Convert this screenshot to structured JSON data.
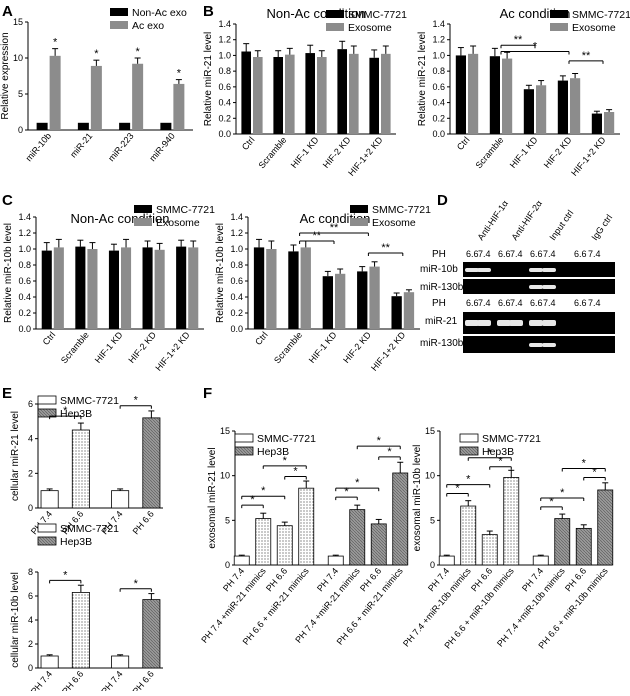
{
  "colors": {
    "black": "#000000",
    "gray": "#8c8c8c",
    "white": "#ffffff",
    "hatch": "#7a7a7a"
  },
  "panel_labels": {
    "a": "A",
    "b": "B",
    "c": "C",
    "d": "D",
    "e": "E",
    "f": "F"
  },
  "gel": {
    "headers": [
      "Anti-HIF-1α",
      "Anti-HIF-2α",
      "Input ctrl",
      "IgG ctrl"
    ],
    "ph_label": "PH",
    "ph_values": [
      "6.6",
      "7.4",
      "6.6",
      "7.4",
      "6.6",
      "7.4",
      "6.6",
      "7.4"
    ],
    "rows_top": [
      "miR-10b",
      "miR-130b"
    ],
    "rows_bottom": [
      "miR-21",
      "miR-130b"
    ]
  },
  "chart_data": [
    {
      "id": "A",
      "type": "bar",
      "title": "",
      "ylabel": "Relative expression",
      "ylim": [
        0,
        15
      ],
      "yticks": [
        0,
        5,
        10,
        15
      ],
      "categories": [
        "miR-10b",
        "miR-21",
        "miR-223",
        "miR-940"
      ],
      "series": [
        {
          "name": "Non-Ac exo",
          "color": "#000000",
          "values": [
            1,
            1,
            1,
            1
          ],
          "err": [
            0,
            0,
            0,
            0
          ]
        },
        {
          "name": "Ac exo",
          "color": "#8c8c8c",
          "values": [
            10.3,
            8.9,
            9.2,
            6.4
          ],
          "err": [
            1.0,
            0.8,
            0.8,
            0.6
          ]
        }
      ],
      "stars": [
        "*",
        "*",
        "*",
        "*"
      ]
    },
    {
      "id": "B1",
      "type": "bar",
      "title": "Non-Ac condition",
      "ylabel": "Relative miR-21 level",
      "ylim": [
        0,
        1.4
      ],
      "yticks": [
        0,
        0.2,
        0.4,
        0.6,
        0.8,
        1.0,
        1.2,
        1.4
      ],
      "categories": [
        "Ctrl",
        "Scramble",
        "HIF-1 KD",
        "HIF-2 KD",
        "HIF-1+2 KD"
      ],
      "series": [
        {
          "name": "SMMC-7721",
          "color": "#000000",
          "values": [
            1.05,
            0.98,
            1.03,
            1.08,
            0.97
          ],
          "err": [
            0.1,
            0.08,
            0.1,
            0.1,
            0.1
          ]
        },
        {
          "name": "Exosome",
          "color": "#8c8c8c",
          "values": [
            0.98,
            1.01,
            0.98,
            1.02,
            1.02
          ],
          "err": [
            0.08,
            0.08,
            0.08,
            0.1,
            0.1
          ]
        }
      ]
    },
    {
      "id": "B2",
      "type": "bar",
      "title": "Ac condition",
      "ylabel": "Relative miR-21 level",
      "ylim": [
        0,
        1.4
      ],
      "yticks": [
        0,
        0.2,
        0.4,
        0.6,
        0.8,
        1.0,
        1.2,
        1.4
      ],
      "categories": [
        "Ctrl",
        "Scramble",
        "HIF-1 KD",
        "HIF-2 KD",
        "HIF-1+2 KD"
      ],
      "series": [
        {
          "name": "SMMC-7721",
          "color": "#000000",
          "values": [
            1.0,
            0.99,
            0.57,
            0.68,
            0.26
          ],
          "err": [
            0.1,
            0.1,
            0.05,
            0.06,
            0.03
          ]
        },
        {
          "name": "Exosome",
          "color": "#8c8c8c",
          "values": [
            1.02,
            0.96,
            0.62,
            0.71,
            0.28
          ],
          "err": [
            0.1,
            0.08,
            0.06,
            0.06,
            0.03
          ]
        }
      ],
      "brackets": [
        {
          "from": 1,
          "to": 2,
          "label": "**",
          "y": 1.13
        },
        {
          "from": 1,
          "to": 3,
          "label": "*",
          "y": 1.05
        },
        {
          "from": 3,
          "to": 4,
          "label": "**",
          "y": 0.93
        },
        {
          "from": 1,
          "to": 2,
          "label": "**",
          "y": 1.02,
          "skip": true
        }
      ]
    },
    {
      "id": "C1",
      "type": "bar",
      "title": "Non-Ac condition",
      "ylabel": "Relative miR-10b level",
      "ylim": [
        0,
        1.4
      ],
      "yticks": [
        0,
        0.2,
        0.4,
        0.6,
        0.8,
        1.0,
        1.2,
        1.4
      ],
      "categories": [
        "Ctrl",
        "Scramble",
        "HIF-1 KD",
        "HIF-2 KD",
        "HIF-1+2 KD"
      ],
      "series": [
        {
          "name": "SMMC-7721",
          "color": "#000000",
          "values": [
            0.98,
            1.03,
            0.98,
            1.02,
            1.03
          ],
          "err": [
            0.1,
            0.08,
            0.08,
            0.08,
            0.08
          ]
        },
        {
          "name": "Exosome",
          "color": "#8c8c8c",
          "values": [
            1.02,
            1.0,
            1.02,
            0.99,
            1.02
          ],
          "err": [
            0.1,
            0.08,
            0.1,
            0.08,
            0.08
          ]
        }
      ]
    },
    {
      "id": "C2",
      "type": "bar",
      "title": "Ac condition",
      "ylabel": "Relative miR-10b level",
      "ylim": [
        0,
        1.4
      ],
      "yticks": [
        0,
        0.2,
        0.4,
        0.6,
        0.8,
        1.0,
        1.2,
        1.4
      ],
      "categories": [
        "Ctrl",
        "Scramble",
        "HIF-1 KD",
        "HIF-2 KD",
        "HIF-1+2 KD"
      ],
      "series": [
        {
          "name": "SMMC-7721",
          "color": "#000000",
          "values": [
            1.02,
            0.97,
            0.66,
            0.72,
            0.41
          ],
          "err": [
            0.1,
            0.08,
            0.06,
            0.06,
            0.04
          ]
        },
        {
          "name": "Exosome",
          "color": "#8c8c8c",
          "values": [
            1.0,
            1.02,
            0.69,
            0.78,
            0.46
          ],
          "err": [
            0.1,
            0.08,
            0.06,
            0.06,
            0.03
          ]
        }
      ],
      "brackets": [
        {
          "from": 1,
          "to": 3,
          "label": "**",
          "y": 1.2
        },
        {
          "from": 1,
          "to": 2,
          "label": "**",
          "y": 1.1
        },
        {
          "from": 1,
          "to": 4,
          "label": "*",
          "y": 1.06,
          "skip": true
        },
        {
          "from": 3,
          "to": 4,
          "label": "**",
          "y": 0.95
        }
      ]
    },
    {
      "id": "E1",
      "type": "bar",
      "title": "",
      "ylabel": "cellular miR-21 level",
      "ylim": [
        0,
        6
      ],
      "yticks": [
        0,
        2,
        4,
        6
      ],
      "categories": [
        "PH 7.4",
        "PH 6.6",
        "PH 7.4",
        "PH 6.6"
      ],
      "bars": [
        {
          "value": 1.0,
          "err": 0.1,
          "fill": "white"
        },
        {
          "value": 4.5,
          "err": 0.4,
          "fill": "dots"
        },
        {
          "value": 1.0,
          "err": 0.1,
          "fill": "white"
        },
        {
          "value": 5.2,
          "err": 0.4,
          "fill": "hatch"
        }
      ],
      "legend": [
        "SMMC-7721",
        "Hep3B"
      ],
      "brackets": [
        {
          "from": 0,
          "to": 1,
          "label": "*",
          "y": 5.3
        },
        {
          "from": 2,
          "to": 3,
          "label": "*",
          "y": 5.9
        }
      ]
    },
    {
      "id": "E2",
      "type": "bar",
      "title": "",
      "ylabel": "cellular miR-10b level",
      "ylim": [
        0,
        8
      ],
      "yticks": [
        0,
        2,
        4,
        6,
        8
      ],
      "categories": [
        "PH 7.4",
        "PH 6.6",
        "PH 7.4",
        "PH 6.6"
      ],
      "bars": [
        {
          "value": 1.0,
          "err": 0.1,
          "fill": "white"
        },
        {
          "value": 6.3,
          "err": 0.6,
          "fill": "dots"
        },
        {
          "value": 1.0,
          "err": 0.1,
          "fill": "white"
        },
        {
          "value": 5.7,
          "err": 0.5,
          "fill": "hatch"
        }
      ],
      "legend": [
        "SMMC-7721",
        "Hep3B"
      ],
      "brackets": [
        {
          "from": 0,
          "to": 1,
          "label": "*",
          "y": 7.3
        },
        {
          "from": 2,
          "to": 3,
          "label": "*",
          "y": 6.6
        }
      ]
    },
    {
      "id": "F1",
      "type": "bar",
      "title": "",
      "ylabel": "exosomal miR-21 level",
      "ylim": [
        0,
        15
      ],
      "yticks": [
        0,
        5,
        10,
        15
      ],
      "categories": [
        "PH 7.4",
        "PH 7.4 +miR-21 mimics",
        "PH 6.6",
        "PH 6.6 + miR-21 mimics",
        "PH 7.4",
        "PH 7.4 +miR-21 mimics",
        "PH 6.6",
        "PH 6.6 + miR-21 mimics"
      ],
      "bars": [
        {
          "value": 1.0,
          "err": 0.1,
          "fill": "white"
        },
        {
          "value": 5.2,
          "err": 0.6,
          "fill": "dots"
        },
        {
          "value": 4.4,
          "err": 0.4,
          "fill": "dots"
        },
        {
          "value": 8.6,
          "err": 0.8,
          "fill": "dots"
        },
        {
          "value": 1.0,
          "err": 0.1,
          "fill": "white"
        },
        {
          "value": 6.2,
          "err": 0.5,
          "fill": "hatch"
        },
        {
          "value": 4.6,
          "err": 0.5,
          "fill": "hatch"
        },
        {
          "value": 10.3,
          "err": 1.2,
          "fill": "hatch"
        }
      ],
      "legend": [
        "SMMC-7721",
        "Hep3B"
      ],
      "brackets": [
        {
          "from": 0,
          "to": 1,
          "label": "*",
          "y": 6.7
        },
        {
          "from": 0,
          "to": 2,
          "label": "*",
          "y": 7.7
        },
        {
          "from": 2,
          "to": 3,
          "label": "*",
          "y": 9.9
        },
        {
          "from": 1,
          "to": 3,
          "label": "*",
          "y": 11.1
        },
        {
          "from": 4,
          "to": 5,
          "label": "*",
          "y": 7.6
        },
        {
          "from": 4,
          "to": 6,
          "label": "*",
          "y": 8.6
        },
        {
          "from": 6,
          "to": 7,
          "label": "*",
          "y": 12.1
        },
        {
          "from": 5,
          "to": 7,
          "label": "*",
          "y": 13.3
        }
      ]
    },
    {
      "id": "F2",
      "type": "bar",
      "title": "",
      "ylabel": "exosomal miR-10b level",
      "ylim": [
        0,
        15
      ],
      "yticks": [
        0,
        5,
        10,
        15
      ],
      "categories": [
        "PH 7.4",
        "PH 7.4 +miR-10b mimics",
        "PH 6.6",
        "PH 6.6 + miR-10b mimics",
        "PH 7.4",
        "PH 7.4 +miR-10b mimics",
        "PH 6.6",
        "PH 6.6 + miR-10b mimics"
      ],
      "bars": [
        {
          "value": 1.0,
          "err": 0.1,
          "fill": "white"
        },
        {
          "value": 6.6,
          "err": 0.6,
          "fill": "dots"
        },
        {
          "value": 3.4,
          "err": 0.4,
          "fill": "dots"
        },
        {
          "value": 9.8,
          "err": 0.8,
          "fill": "dots"
        },
        {
          "value": 1.0,
          "err": 0.1,
          "fill": "white"
        },
        {
          "value": 5.2,
          "err": 0.5,
          "fill": "hatch"
        },
        {
          "value": 4.1,
          "err": 0.4,
          "fill": "hatch"
        },
        {
          "value": 8.4,
          "err": 0.8,
          "fill": "hatch"
        }
      ],
      "legend": [
        "SMMC-7721",
        "Hep3B"
      ],
      "brackets": [
        {
          "from": 0,
          "to": 1,
          "label": "*",
          "y": 8.0
        },
        {
          "from": 0,
          "to": 2,
          "label": "*",
          "y": 9.0
        },
        {
          "from": 2,
          "to": 3,
          "label": "*",
          "y": 11.0
        },
        {
          "from": 1,
          "to": 3,
          "label": "*",
          "y": 12.0
        },
        {
          "from": 4,
          "to": 5,
          "label": "*",
          "y": 6.5
        },
        {
          "from": 4,
          "to": 6,
          "label": "*",
          "y": 7.5
        },
        {
          "from": 6,
          "to": 7,
          "label": "*",
          "y": 9.8
        },
        {
          "from": 5,
          "to": 7,
          "label": "*",
          "y": 10.8
        }
      ]
    }
  ]
}
